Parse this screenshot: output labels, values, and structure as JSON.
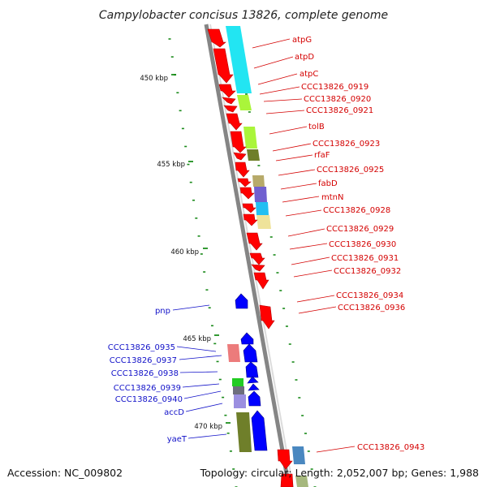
{
  "title": "Campylobacter concisus 13826, complete genome",
  "accession": "Accession: NC_009802",
  "summary": "Topology: circular; Length: 2,052,007 bp; Genes: 1,988",
  "colors": {
    "forward_label": "#d40000",
    "reverse_label": "#1010c8",
    "forward_gene": "#ff0000",
    "reverse_gene": "#0000ff",
    "backbone": "#888888",
    "tick": "#008000"
  },
  "ticks": [
    "450 kbp",
    "455 kbp",
    "460 kbp",
    "465 kbp",
    "470 kbp"
  ],
  "forward_labels": [
    "atpG",
    "atpD",
    "atpC",
    "CCC13826_0919",
    "CCC13826_0920",
    "CCC13826_0921",
    "tolB",
    "CCC13826_0923",
    "rfaF",
    "CCC13826_0925",
    "fabD",
    "mtnN",
    "CCC13826_0928",
    "CCC13826_0929",
    "CCC13826_0930",
    "CCC13826_0931",
    "CCC13826_0932",
    "CCC13826_0934",
    "CCC13826_0936",
    "CCC13826_0943"
  ],
  "reverse_labels": [
    "pnp",
    "CCC13826_0935",
    "CCC13826_0937",
    "CCC13826_0938",
    "CCC13826_0939",
    "CCC13826_0940",
    "accD",
    "yaeT"
  ]
}
